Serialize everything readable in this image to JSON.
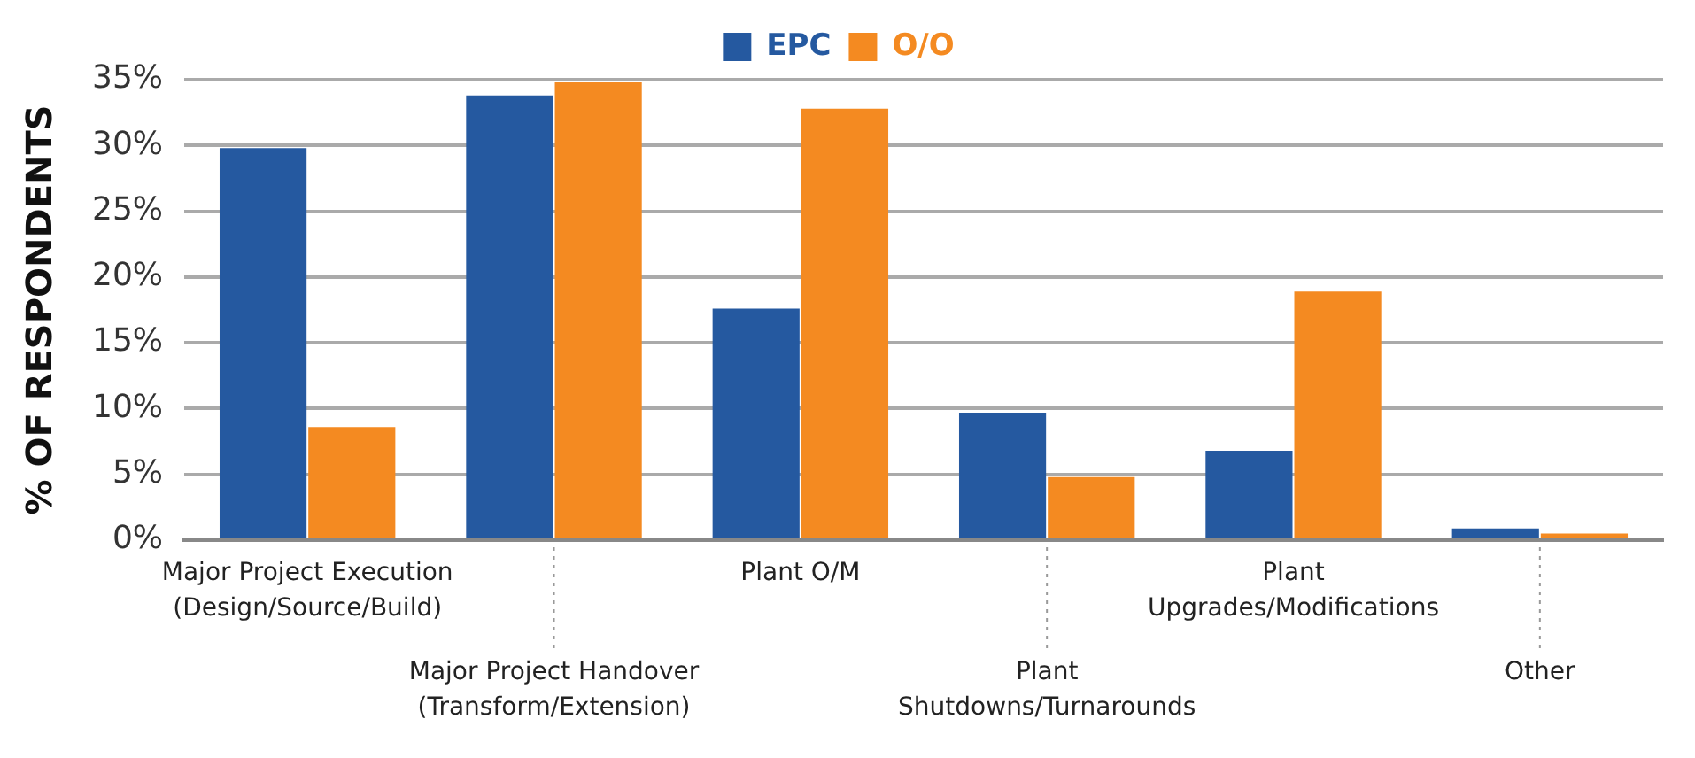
{
  "chart_data": {
    "type": "bar",
    "ylabel": "% OF RESPONDENTS",
    "categories": [
      "Major Project Execution (Design/Source/Build)",
      "Major Project Handover (Transform/Extension)",
      "Plant O/M",
      "Plant Shutdowns/Turnarounds",
      "Plant Upgrades/Modifications",
      "Other"
    ],
    "series": [
      {
        "name": "EPC",
        "color": "#2559a0",
        "values": [
          29.8,
          33.8,
          17.6,
          9.7,
          6.8,
          0.9
        ]
      },
      {
        "name": "O/O",
        "color": "#f48a21",
        "values": [
          8.6,
          34.8,
          32.8,
          4.8,
          18.9,
          0.5
        ]
      }
    ],
    "ylim": [
      0,
      35
    ],
    "yticks": [
      {
        "value": 0,
        "label": "0%"
      },
      {
        "value": 5,
        "label": "5%"
      },
      {
        "value": 10,
        "label": "10%"
      },
      {
        "value": 15,
        "label": "15%"
      },
      {
        "value": 20,
        "label": "20%"
      },
      {
        "value": 25,
        "label": "25%"
      },
      {
        "value": 30,
        "label": "30%"
      },
      {
        "value": 35,
        "label": "35%"
      }
    ],
    "grid": "y",
    "legend": "top"
  }
}
